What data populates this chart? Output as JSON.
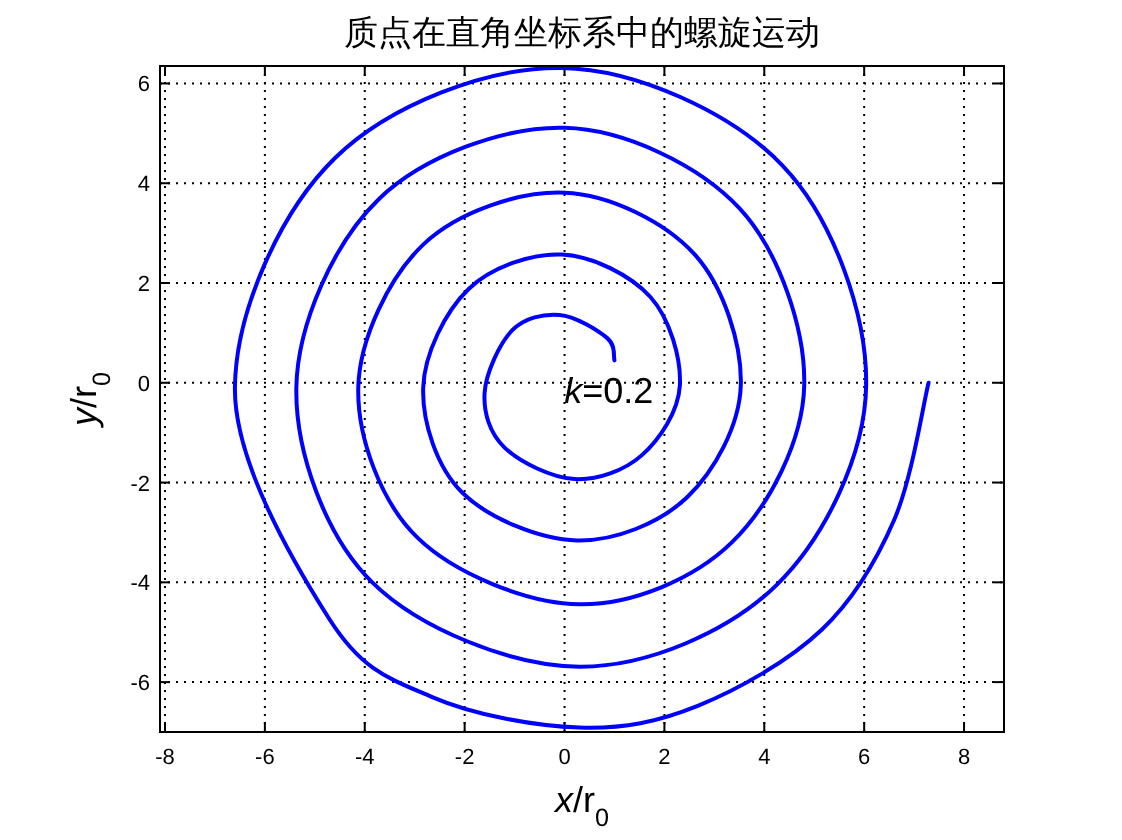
{
  "chart_data": {
    "type": "line",
    "title": "质点在直角坐标系中的螺旋运动",
    "xlabel": "x/r$_{0}$",
    "ylabel": "y/r$_{0}$",
    "series": [
      {
        "color": "#0000ff",
        "x": [
          1.0,
          0.85,
          -0.1,
          -1.05,
          -1.6,
          -1.2,
          0.2,
          1.55,
          2.31,
          1.72,
          -0.05,
          -1.92,
          -2.83,
          -2.05,
          0.25,
          2.45,
          3.53,
          2.6,
          0,
          -2.82,
          -4.13,
          -2.95,
          0.3,
          3.35,
          4.8,
          3.5,
          0,
          -3.72,
          -5.37,
          -3.85,
          0.3,
          4.25,
          6.04,
          4.37,
          -0.05,
          -4.6,
          -6.6,
          -4.7,
          -2.65,
          0.3,
          2.68,
          5.15,
          6.6,
          7.29
        ],
        "values": [
          0.45,
          0.9,
          1.36,
          1.05,
          -0.2,
          -1.3,
          -1.93,
          -1.45,
          -0.05,
          1.72,
          2.57,
          1.88,
          -0.1,
          -2.2,
          -3.16,
          -2.3,
          -0.05,
          2.58,
          3.81,
          2.78,
          -0.1,
          -3.1,
          -4.44,
          -3.2,
          -0.05,
          3.5,
          5.11,
          3.68,
          -0.1,
          -4.0,
          -5.69,
          -4.05,
          -0.05,
          4.35,
          6.31,
          4.5,
          -0.1,
          -4.75,
          -6.3,
          -6.91,
          -6.47,
          -4.95,
          -2.75,
          0
        ]
      }
    ],
    "xlim": [
      -8.1,
      8.8
    ],
    "ylim": [
      -7,
      6.35
    ],
    "xticks": [
      -8,
      -6,
      -4,
      -2,
      0,
      2,
      4,
      6,
      8
    ],
    "yticks": [
      -6,
      -4,
      -2,
      0,
      2,
      4,
      6
    ],
    "grid": true,
    "line_style": "solid",
    "marker": "none",
    "annotations": [
      "k=0.2"
    ]
  }
}
